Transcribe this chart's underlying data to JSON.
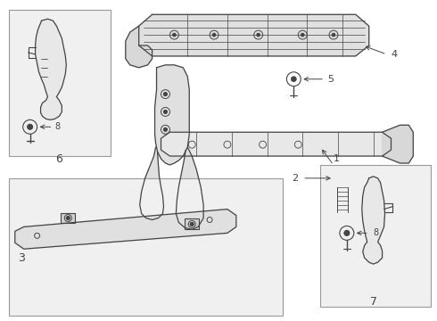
{
  "background_color": "#ffffff",
  "line_color": "#444444",
  "light_fill": "#efefef",
  "figsize": [
    4.9,
    3.6
  ],
  "dpi": 100
}
